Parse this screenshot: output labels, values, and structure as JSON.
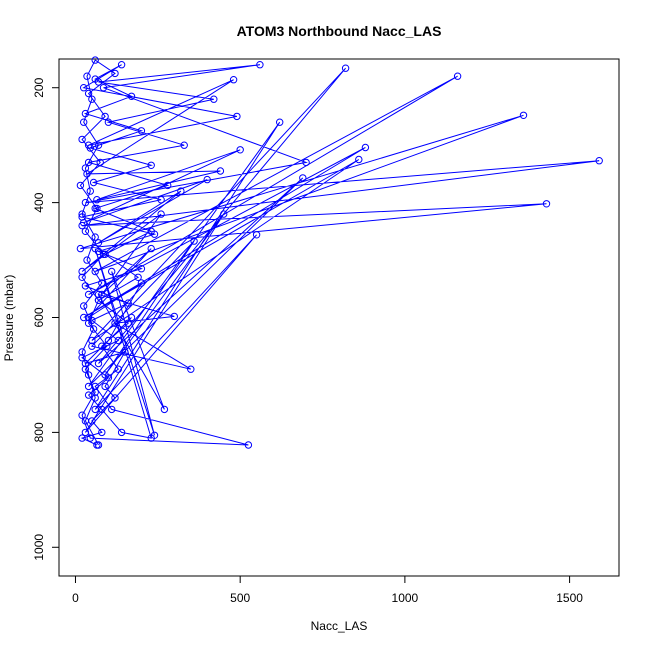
{
  "chart_data": {
    "type": "line",
    "title": "ATOM3 Northbound Nacc_LAS",
    "xlabel": "Nacc_LAS",
    "ylabel": "Pressure (mbar)",
    "xlim": [
      -50,
      1650
    ],
    "ylim": [
      1050,
      150
    ],
    "x_ticks": [
      0,
      500,
      1000,
      1500
    ],
    "x_tick_labels": [
      "0",
      "500",
      "1000",
      "1500"
    ],
    "y_ticks": [
      200,
      400,
      600,
      800,
      1000
    ],
    "y_tick_labels": [
      "200",
      "400",
      "600",
      "800",
      "1000"
    ],
    "y_axis_reversed": true,
    "grid": false,
    "legend": "none",
    "colors": {
      "series": "#0000ff",
      "axis": "#000000"
    },
    "marker": "open-circle",
    "series": [
      {
        "points": [
          [
            70,
            822
          ],
          [
            30,
            780
          ],
          [
            60,
            740
          ],
          [
            40,
            700
          ],
          [
            20,
            660
          ],
          [
            55,
            620
          ],
          [
            25,
            580
          ],
          [
            80,
            540
          ],
          [
            35,
            500
          ],
          [
            60,
            460
          ],
          [
            20,
            420
          ],
          [
            45,
            380
          ],
          [
            30,
            340
          ],
          [
            70,
            300
          ],
          [
            25,
            260
          ],
          [
            50,
            220
          ],
          [
            35,
            180
          ],
          [
            60,
            152
          ],
          [
            120,
            175
          ],
          [
            40,
            210
          ],
          [
            90,
            250
          ],
          [
            20,
            290
          ],
          [
            75,
            330
          ],
          [
            15,
            370
          ],
          [
            65,
            410
          ],
          [
            30,
            450
          ],
          [
            85,
            490
          ],
          [
            20,
            530
          ],
          [
            70,
            570
          ],
          [
            40,
            610
          ],
          [
            95,
            650
          ],
          [
            30,
            690
          ],
          [
            60,
            730
          ],
          [
            20,
            770
          ],
          [
            45,
            810
          ],
          [
            525,
            822
          ],
          [
            110,
            760
          ],
          [
            60,
            720
          ],
          [
            130,
            690
          ],
          [
            80,
            650
          ],
          [
            160,
            610
          ],
          [
            70,
            570
          ],
          [
            190,
            530
          ],
          [
            90,
            490
          ],
          [
            230,
            450
          ],
          [
            60,
            410
          ],
          [
            280,
            370
          ],
          [
            40,
            330
          ],
          [
            330,
            300
          ],
          [
            100,
            260
          ],
          [
            420,
            220
          ],
          [
            70,
            190
          ],
          [
            560,
            160
          ],
          [
            85,
            200
          ],
          [
            700,
            330
          ],
          [
            30,
            400
          ],
          [
            1590,
            327
          ],
          [
            20,
            440
          ],
          [
            1430,
            402
          ],
          [
            15,
            480
          ],
          [
            1360,
            248
          ],
          [
            60,
            520
          ],
          [
            1160,
            180
          ],
          [
            40,
            560
          ],
          [
            880,
            304
          ],
          [
            25,
            600
          ],
          [
            860,
            325
          ],
          [
            50,
            640
          ],
          [
            820,
            166
          ],
          [
            70,
            680
          ],
          [
            690,
            357
          ],
          [
            40,
            720
          ],
          [
            620,
            260
          ],
          [
            60,
            760
          ],
          [
            550,
            456
          ],
          [
            30,
            800
          ],
          [
            450,
            420
          ],
          [
            90,
            700
          ],
          [
            360,
            467
          ],
          [
            50,
            650
          ],
          [
            350,
            690
          ],
          [
            120,
            610
          ],
          [
            300,
            598
          ],
          [
            70,
            560
          ],
          [
            270,
            760
          ],
          [
            110,
            520
          ],
          [
            240,
            805
          ],
          [
            60,
            480
          ],
          [
            230,
            810
          ],
          [
            140,
            800
          ],
          [
            80,
            760
          ],
          [
            40,
            735
          ],
          [
            100,
            705
          ],
          [
            20,
            670
          ],
          [
            130,
            640
          ],
          [
            50,
            605
          ],
          [
            160,
            575
          ],
          [
            30,
            545
          ],
          [
            200,
            515
          ],
          [
            70,
            485
          ],
          [
            240,
            455
          ],
          [
            20,
            425
          ],
          [
            260,
            395
          ],
          [
            55,
            365
          ],
          [
            230,
            335
          ],
          [
            45,
            305
          ],
          [
            200,
            275
          ],
          [
            30,
            245
          ],
          [
            170,
            215
          ],
          [
            60,
            185
          ],
          [
            140,
            160
          ],
          [
            25,
            200
          ],
          [
            490,
            250
          ],
          [
            40,
            300
          ],
          [
            480,
            186
          ],
          [
            35,
            350
          ],
          [
            440,
            345
          ],
          [
            65,
            395
          ],
          [
            500,
            308
          ],
          [
            25,
            435
          ],
          [
            400,
            360
          ],
          [
            70,
            470
          ],
          [
            320,
            380
          ],
          [
            20,
            520
          ],
          [
            260,
            420
          ],
          [
            80,
            560
          ],
          [
            230,
            480
          ],
          [
            40,
            600
          ],
          [
            200,
            540
          ],
          [
            100,
            640
          ],
          [
            170,
            600
          ],
          [
            30,
            680
          ],
          [
            150,
            660
          ],
          [
            90,
            720
          ],
          [
            120,
            740
          ],
          [
            50,
            780
          ],
          [
            80,
            800
          ],
          [
            20,
            810
          ],
          [
            65,
            822
          ]
        ]
      }
    ]
  }
}
